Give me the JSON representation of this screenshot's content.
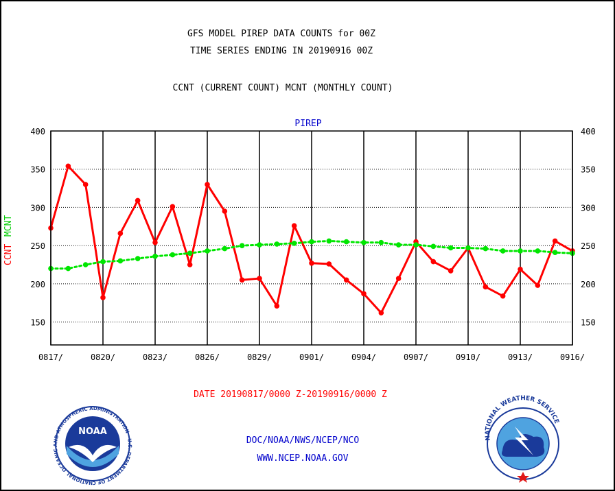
{
  "header": {
    "title_line1": "GFS MODEL PIREP DATA COUNTS for 00Z",
    "title_line2": "TIME SERIES ENDING IN 20190916 00Z",
    "subtitle": "CCNT (CURRENT COUNT) MCNT (MONTHLY COUNT)"
  },
  "footer": {
    "date_range": "DATE 20190817/0000 Z-20190916/0000 Z",
    "org_line": "DOC/NOAA/NWS/NCEP/NCO",
    "url_line": "WWW.NCEP.NOAA.GOV"
  },
  "logos": {
    "noaa_text": "NOAA",
    "noaa_ring_text": "NATIONAL OCEANIC AND ATMOSPHERIC ADMINISTRATION · U.S. DEPARTMENT OF COMMERCE ·",
    "nws_ring_text": "NATIONAL WEATHER SERVICE"
  },
  "chart_data": {
    "type": "line",
    "title": "PIREP",
    "ylabel_ccnt": "CCNT",
    "ylabel_mcnt": "MCNT",
    "ylim": [
      120,
      400
    ],
    "yticks": [
      150,
      200,
      250,
      300,
      350,
      400
    ],
    "x": [
      "0817",
      "0818",
      "0819",
      "0820",
      "0821",
      "0822",
      "0823",
      "0824",
      "0825",
      "0826",
      "0827",
      "0828",
      "0829",
      "0830",
      "0831",
      "0901",
      "0902",
      "0903",
      "0904",
      "0905",
      "0906",
      "0907",
      "0908",
      "0909",
      "0910",
      "0911",
      "0912",
      "0913",
      "0914",
      "0915",
      "0916"
    ],
    "xticks": [
      "0817/",
      "0820/",
      "0823/",
      "0826/",
      "0829/",
      "0901/",
      "0904/",
      "0907/",
      "0910/",
      "0913/",
      "0916/"
    ],
    "grid": true,
    "series": [
      {
        "name": "CCNT",
        "color": "#ff0000",
        "style": "solid",
        "values": [
          273,
          354,
          330,
          182,
          266,
          309,
          254,
          301,
          225,
          330,
          295,
          205,
          207,
          171,
          276,
          227,
          226,
          205,
          187,
          162,
          207,
          255,
          229,
          217,
          247,
          196,
          184,
          219,
          198,
          256,
          243
        ]
      },
      {
        "name": "MCNT",
        "color": "#00e600",
        "style": "dotted",
        "values": [
          220,
          220,
          225,
          229,
          230,
          233,
          236,
          238,
          240,
          243,
          246,
          250,
          251,
          252,
          253,
          255,
          256,
          255,
          254,
          254,
          251,
          251,
          249,
          247,
          247,
          246,
          243,
          243,
          243,
          241,
          240
        ]
      }
    ]
  }
}
